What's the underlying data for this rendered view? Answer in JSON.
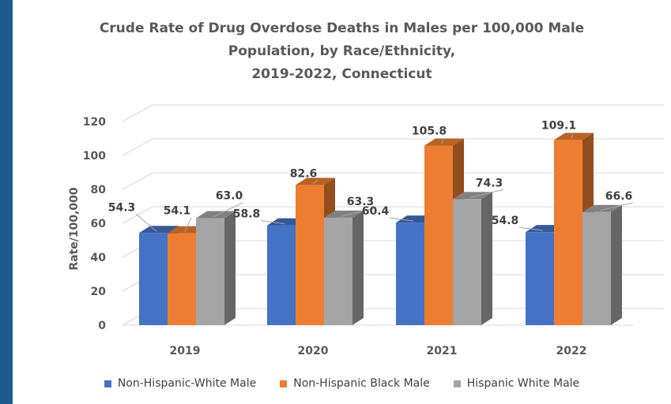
{
  "chart_data": {
    "type": "bar",
    "title_lines": [
      "Crude Rate of Drug Overdose Deaths in Males per 100,000 Male",
      "Population, by Race/Ethnicity,",
      "2019-2022, Connecticut"
    ],
    "ylabel": "Rate/100,000",
    "xlabel": "",
    "ylim": [
      0,
      120
    ],
    "yticks": [
      "0",
      "20",
      "40",
      "60",
      "80",
      "100",
      "120"
    ],
    "categories": [
      "2019",
      "2020",
      "2021",
      "2022"
    ],
    "series": [
      {
        "name": "Non-Hispanic-White Male",
        "color": "#4472c4",
        "values": [
          54.3,
          58.8,
          60.4,
          54.8
        ],
        "labels": [
          "54.3",
          "58.8",
          "60.4",
          "54.8"
        ]
      },
      {
        "name": "Non-Hispanic Black Male",
        "color": "#ed7d31",
        "values": [
          54.1,
          82.6,
          105.8,
          109.1
        ],
        "labels": [
          "54.1",
          "82.6",
          "105.8",
          "109.1"
        ]
      },
      {
        "name": "Hispanic White Male",
        "color": "#a5a5a5",
        "values": [
          63.0,
          63.3,
          74.3,
          66.6
        ],
        "labels": [
          "63.0",
          "63.3",
          "74.3",
          "66.6"
        ]
      }
    ],
    "grid": true,
    "legend_position": "bottom",
    "style": "3d-clustered"
  }
}
